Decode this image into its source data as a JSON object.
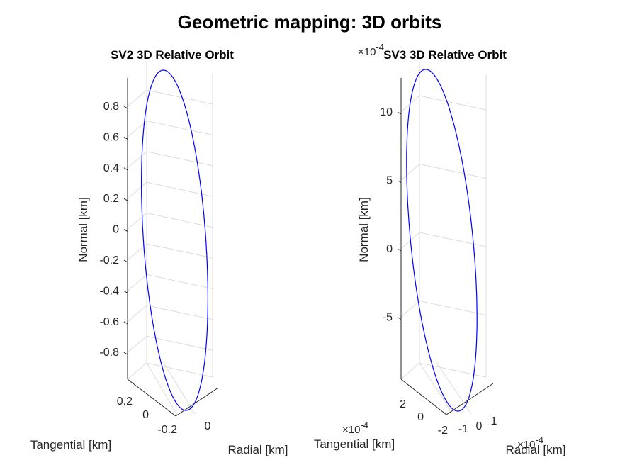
{
  "figure": {
    "title": "Geometric mapping: 3D orbits"
  },
  "chart_data": [
    {
      "type": "line3d",
      "title": "SV2 3D Relative Orbit",
      "xlabel": "Radial [km]",
      "ylabel": "Tangential [km]",
      "zlabel": "Normal [km]",
      "z_ticks": [
        "0.8",
        "0.6",
        "0.4",
        "0.2",
        "0",
        "-0.2",
        "-0.4",
        "-0.6",
        "-0.8"
      ],
      "y_ticks": [
        "0.2",
        "0",
        "-0.2"
      ],
      "x_ticks": [
        "0"
      ],
      "z_exponent": "",
      "y_exponent": "",
      "x_exponent": "",
      "series": [
        {
          "color": "#0000ff",
          "description": "closed elliptical relative orbit",
          "zlim": [
            -1,
            1
          ]
        }
      ]
    },
    {
      "type": "line3d",
      "title": "SV3 3D Relative Orbit",
      "xlabel": "Radial [km]",
      "ylabel": "Tangential [km]",
      "zlabel": "Normal [km]",
      "z_ticks": [
        "10",
        "5",
        "0",
        "-5"
      ],
      "y_ticks": [
        "2",
        "0",
        "-2"
      ],
      "x_ticks": [
        "-1",
        "0",
        "1"
      ],
      "z_exponent": "×10-4",
      "y_exponent": "×10-4",
      "x_exponent": "×10-4",
      "series": [
        {
          "color": "#0000ff",
          "description": "closed elliptical relative orbit",
          "zlim": [
            -1.2,
            1.2
          ]
        }
      ]
    }
  ]
}
